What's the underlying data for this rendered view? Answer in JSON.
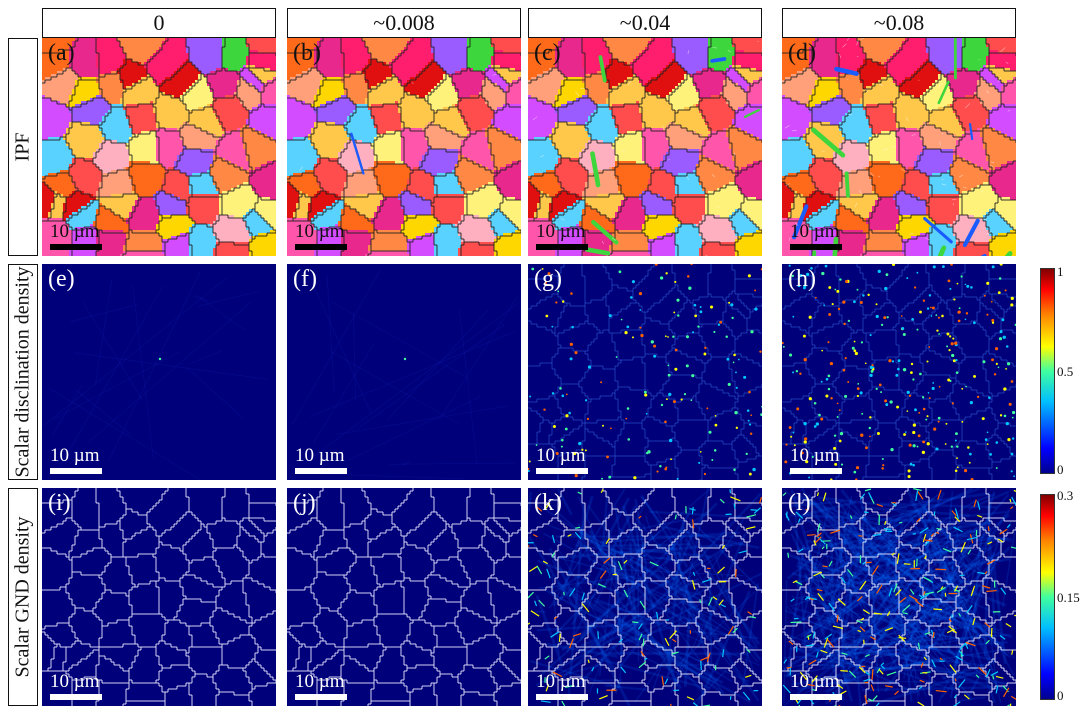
{
  "columns": [
    "0",
    "~0.008",
    "~0.04",
    "~0.08"
  ],
  "rows": [
    "IPF",
    "Scalar disclination density",
    "Scalar GND density"
  ],
  "panels": [
    [
      "(a)",
      "(b)",
      "(c)",
      "(d)"
    ],
    [
      "(e)",
      "(f)",
      "(g)",
      "(h)"
    ],
    [
      "(i)",
      "(j)",
      "(k)",
      "(l)"
    ]
  ],
  "scale_bar": "10 µm",
  "colorbar_disclination": {
    "max": "1",
    "mid": "0.5",
    "min": "0"
  },
  "colorbar_gnd": {
    "max": "0.3",
    "mid": "0.15",
    "min": "0"
  },
  "colors": {
    "ipf_palette": [
      "#ff1e6e",
      "#e8288c",
      "#ff4d4d",
      "#ff6a1a",
      "#ffa07a",
      "#ffd700",
      "#fff27a",
      "#d44cff",
      "#ff55aa",
      "#ffb0c0",
      "#5ad2ff",
      "#3dd63d",
      "#9a5cff",
      "#ff8844",
      "#e01010",
      "#ffc84a"
    ],
    "map_background": "#00007a",
    "boundary": "#e8e8ff",
    "hotspot": [
      "#00c8ff",
      "#40ff9f",
      "#ffff00",
      "#ff6000"
    ]
  }
}
